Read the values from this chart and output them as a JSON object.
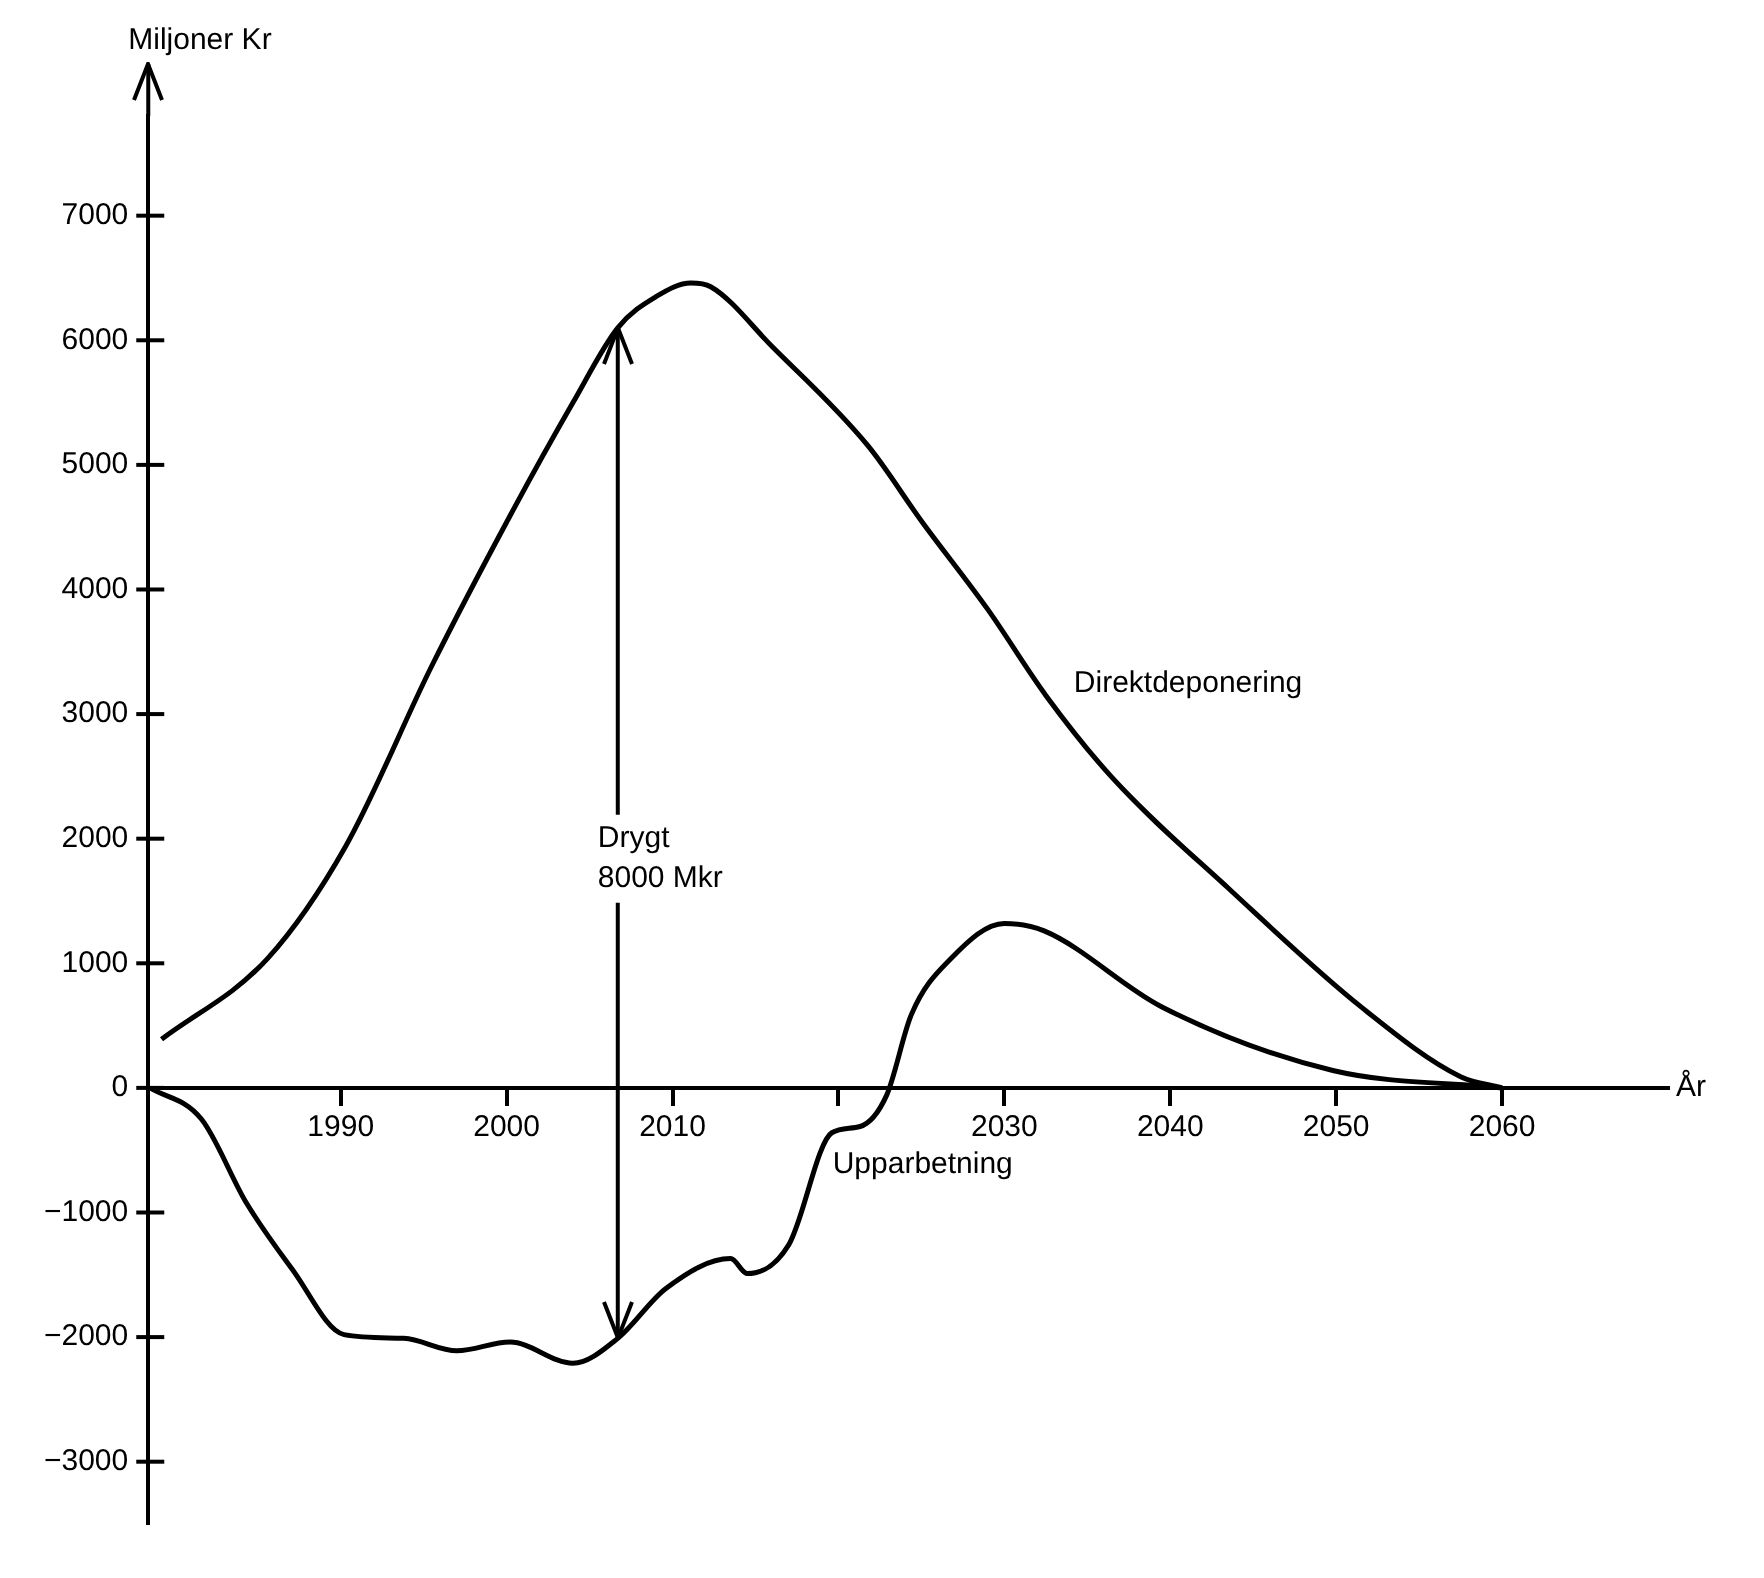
{
  "chart_data": {
    "type": "line",
    "xlabel": "År",
    "ylabel": "Miljoner Kr",
    "xlim": [
      1978.4,
      2070
    ],
    "ylim": [
      -3500,
      7800
    ],
    "xticks": [
      1990,
      2000,
      2010,
      {
        "value": 2020,
        "label": null
      },
      2030,
      2040,
      2050,
      2060
    ],
    "yticks": [
      -3000,
      -2000,
      -1000,
      0,
      1000,
      2000,
      3000,
      4000,
      5000,
      6000,
      7000
    ],
    "series": [
      {
        "name": "Direktdeponering",
        "color": "#000000",
        "x": [
          1979.2,
          1985.6,
          1990.3,
          1995.5,
          2000.2,
          2004,
          2006.7,
          2009,
          2011.1,
          2012.3,
          2016,
          2021.8,
          2025,
          2029,
          2032.5,
          2036.5,
          2043.6,
          2051.5,
          2057.5,
          2060
        ],
        "values": [
          390,
          1040,
          1940,
          3390,
          4590,
          5500,
          6100,
          6350,
          6460,
          6430,
          5950,
          5150,
          4550,
          3840,
          3150,
          2490,
          1590,
          650,
          90,
          0
        ]
      },
      {
        "name": "Upparbetning",
        "color": "#000000",
        "x": [
          1978.5,
          1981.6,
          1984.3,
          1987.1,
          1990.2,
          1993.8,
          1997,
          2000.2,
          2004,
          2006.7,
          2009.6,
          2013.5,
          2014.5,
          2017,
          2019.6,
          2021.3,
          2022.9,
          2024.4,
          2026.8,
          2030,
          2032.4,
          2039.5,
          2049.8,
          2060
        ],
        "values": [
          0,
          -250,
          -920,
          -1460,
          -1980,
          -2010,
          -2110,
          -2040,
          -2210,
          -2010,
          -1610,
          -1370,
          -1490,
          -1260,
          -360,
          -310,
          -60,
          590,
          1040,
          1320,
          1260,
          650,
          140,
          0
        ]
      }
    ],
    "ref_lines": [
      {
        "axis": "x",
        "value": 2006.7,
        "label": "Drygt 8000 Mkr"
      }
    ]
  }
}
